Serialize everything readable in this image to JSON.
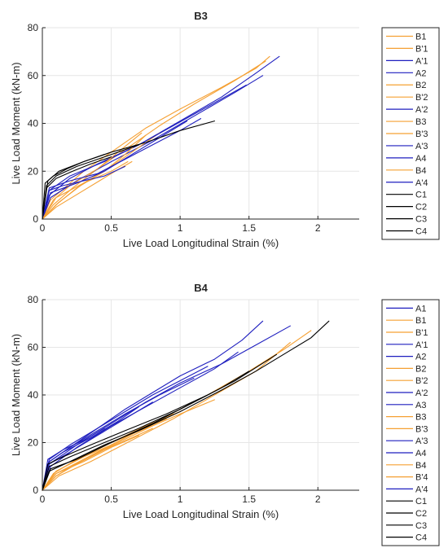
{
  "colors": {
    "A": "#1f1fbf",
    "B": "#f5a033",
    "C": "#000000"
  },
  "chart_data": [
    {
      "type": "line",
      "title": "B3",
      "xlabel": "Live Load Longitudinal Strain (%)",
      "ylabel": "Live Load Moment (kN-m)",
      "xlim": [
        0,
        2.3
      ],
      "ylim": [
        0,
        80
      ],
      "xticks": [
        0,
        0.5,
        1,
        1.5,
        2
      ],
      "xtick_labels": [
        "0",
        "0.5",
        "1",
        "1.5",
        "2"
      ],
      "yticks": [
        0,
        20,
        40,
        60,
        80
      ],
      "ytick_labels": [
        "0",
        "20",
        "40",
        "60",
        "80"
      ],
      "grid": true,
      "legend": "outside-right",
      "series": [
        {
          "name": "B1",
          "group": "B",
          "x": [
            0,
            0.06,
            0.18,
            0.3,
            0.5,
            0.75,
            1.0,
            1.3,
            1.55,
            1.65
          ],
          "y": [
            0,
            8,
            14,
            20,
            28,
            38,
            46,
            55,
            63,
            68
          ]
        },
        {
          "name": "B'1",
          "group": "B",
          "x": [
            0,
            0.08,
            0.22,
            0.4,
            0.6,
            0.85,
            1.1,
            1.4,
            1.62
          ],
          "y": [
            0,
            6,
            13,
            21,
            29,
            39,
            48,
            58,
            66
          ]
        },
        {
          "name": "A'1",
          "group": "A",
          "x": [
            0,
            0.05,
            0.2,
            0.4,
            0.7,
            1.0,
            1.3,
            1.55,
            1.72
          ],
          "y": [
            0,
            10,
            17,
            23,
            31,
            41,
            51,
            61,
            68
          ]
        },
        {
          "name": "A2",
          "group": "A",
          "x": [
            0,
            0.06,
            0.25,
            0.5,
            0.8,
            1.1,
            1.4,
            1.6
          ],
          "y": [
            0,
            9,
            16,
            24,
            33,
            43,
            53,
            60
          ]
        },
        {
          "name": "B2",
          "group": "B",
          "x": [
            0,
            0.1,
            0.3,
            0.5,
            0.65
          ],
          "y": [
            0,
            5,
            12,
            19,
            24
          ]
        },
        {
          "name": "B'2",
          "group": "B",
          "x": [
            0,
            0.12,
            0.3,
            0.5,
            0.7,
            0.85
          ],
          "y": [
            0,
            7,
            15,
            22,
            30,
            36
          ]
        },
        {
          "name": "A'2",
          "group": "A",
          "x": [
            0,
            0.05,
            0.2,
            0.45,
            0.7,
            0.95,
            1.2,
            1.48
          ],
          "y": [
            0,
            12,
            18,
            24,
            31,
            39,
            47,
            56
          ]
        },
        {
          "name": "B3",
          "group": "B",
          "x": [
            0,
            0.1,
            0.25,
            0.45,
            0.6,
            0.75
          ],
          "y": [
            0,
            6,
            13,
            20,
            27,
            35
          ]
        },
        {
          "name": "B'3",
          "group": "B",
          "x": [
            0,
            0.08,
            0.2,
            0.4,
            0.55,
            0.72
          ],
          "y": [
            0,
            8,
            14,
            21,
            28,
            36
          ]
        },
        {
          "name": "A'3",
          "group": "A",
          "x": [
            0,
            0.06,
            0.25,
            0.45,
            0.65,
            0.85,
            1.05
          ],
          "y": [
            0,
            11,
            15,
            20,
            27,
            34,
            41
          ]
        },
        {
          "name": "A4",
          "group": "A",
          "x": [
            0,
            0.05,
            0.2,
            0.4,
            0.6,
            0.8,
            1.0,
            1.15
          ],
          "y": [
            0,
            13,
            16,
            19,
            25,
            31,
            37,
            42
          ]
        },
        {
          "name": "B4",
          "group": "B",
          "x": [
            0,
            0.1,
            0.3,
            0.5,
            0.62
          ],
          "y": [
            0,
            9,
            15,
            20,
            24
          ]
        },
        {
          "name": "A'4",
          "group": "A",
          "x": [
            0,
            0.05,
            0.15,
            0.3,
            0.45,
            0.6
          ],
          "y": [
            0,
            12,
            14,
            16,
            18,
            22
          ]
        },
        {
          "name": "C1",
          "group": "C",
          "x": [
            0,
            0.03,
            0.1,
            0.25,
            0.4,
            0.55,
            0.7
          ],
          "y": [
            0,
            14,
            18,
            22,
            25,
            28,
            31
          ]
        },
        {
          "name": "C2",
          "group": "C",
          "x": [
            0,
            0.04,
            0.12,
            0.3,
            0.5,
            0.75,
            1.0,
            1.25
          ],
          "y": [
            0,
            16,
            20,
            24,
            28,
            32,
            37,
            41
          ]
        },
        {
          "name": "C3",
          "group": "C",
          "x": [
            0,
            0.03,
            0.1,
            0.22,
            0.35,
            0.5
          ],
          "y": [
            0,
            13,
            17,
            20,
            23,
            26
          ]
        },
        {
          "name": "C4",
          "group": "C",
          "x": [
            0,
            0.02,
            0.08,
            0.18,
            0.3,
            0.45
          ],
          "y": [
            0,
            15,
            18,
            21,
            24,
            27
          ]
        }
      ]
    },
    {
      "type": "line",
      "title": "B4",
      "xlabel": "Live Load Longitudinal Strain (%)",
      "ylabel": "Live Load Moment (kN-m)",
      "xlim": [
        0,
        2.3
      ],
      "ylim": [
        0,
        80
      ],
      "xticks": [
        0,
        0.5,
        1,
        1.5,
        2
      ],
      "xtick_labels": [
        "0",
        "0.5",
        "1",
        "1.5",
        "2"
      ],
      "yticks": [
        0,
        20,
        40,
        60,
        80
      ],
      "ytick_labels": [
        "0",
        "20",
        "40",
        "60",
        "80"
      ],
      "grid": true,
      "legend": "outside-right",
      "series": [
        {
          "name": "A1",
          "group": "A",
          "x": [
            0,
            0.05,
            0.2,
            0.4,
            0.6,
            0.8,
            1.0,
            1.25,
            1.45,
            1.6
          ],
          "y": [
            0,
            12,
            18,
            26,
            34,
            41,
            48,
            55,
            63,
            71
          ]
        },
        {
          "name": "B1",
          "group": "B",
          "x": [
            0,
            0.1,
            0.3,
            0.6,
            0.9,
            1.2,
            1.5,
            1.75,
            1.95
          ],
          "y": [
            0,
            7,
            13,
            22,
            31,
            40,
            50,
            59,
            67
          ]
        },
        {
          "name": "B'1",
          "group": "B",
          "x": [
            0,
            0.12,
            0.35,
            0.65,
            0.95,
            1.25,
            1.55,
            1.8
          ],
          "y": [
            0,
            6,
            12,
            21,
            30,
            40,
            50,
            62
          ]
        },
        {
          "name": "A'1",
          "group": "A",
          "x": [
            0,
            0.05,
            0.25,
            0.5,
            0.75,
            1.0,
            1.3,
            1.55,
            1.8
          ],
          "y": [
            0,
            11,
            19,
            28,
            37,
            45,
            53,
            61,
            69
          ]
        },
        {
          "name": "A2",
          "group": "A",
          "x": [
            0,
            0.06,
            0.25,
            0.5,
            0.75,
            1.0,
            1.25,
            1.42
          ],
          "y": [
            0,
            10,
            18,
            27,
            35,
            43,
            51,
            58
          ]
        },
        {
          "name": "B2",
          "group": "B",
          "x": [
            0,
            0.1,
            0.3,
            0.55,
            0.8,
            1.0,
            1.25
          ],
          "y": [
            0,
            6,
            13,
            20,
            27,
            32,
            38
          ]
        },
        {
          "name": "B'2",
          "group": "B",
          "x": [
            0,
            0.1,
            0.3,
            0.5,
            0.75,
            0.95
          ],
          "y": [
            0,
            8,
            14,
            20,
            26,
            32
          ]
        },
        {
          "name": "A'2",
          "group": "A",
          "x": [
            0,
            0.05,
            0.2,
            0.4,
            0.6,
            0.8,
            1.0,
            1.2
          ],
          "y": [
            0,
            13,
            19,
            26,
            33,
            40,
            46,
            52
          ]
        },
        {
          "name": "A3",
          "group": "A",
          "x": [
            0,
            0.05,
            0.2,
            0.4,
            0.6,
            0.85,
            1.1
          ],
          "y": [
            0,
            12,
            18,
            25,
            32,
            40,
            47
          ]
        },
        {
          "name": "B3",
          "group": "B",
          "x": [
            0,
            0.08,
            0.25,
            0.5,
            0.75,
            1.0
          ],
          "y": [
            0,
            7,
            13,
            20,
            27,
            33
          ]
        },
        {
          "name": "B'3",
          "group": "B",
          "x": [
            0,
            0.1,
            0.3,
            0.5,
            0.7,
            0.9
          ],
          "y": [
            0,
            8,
            14,
            19,
            25,
            30
          ]
        },
        {
          "name": "A'3",
          "group": "A",
          "x": [
            0,
            0.05,
            0.2,
            0.4,
            0.6,
            0.8
          ],
          "y": [
            0,
            11,
            16,
            23,
            30,
            37
          ]
        },
        {
          "name": "A4",
          "group": "A",
          "x": [
            0,
            0.05,
            0.15,
            0.35,
            0.55,
            0.7
          ],
          "y": [
            0,
            12,
            16,
            22,
            29,
            35
          ]
        },
        {
          "name": "B4",
          "group": "B",
          "x": [
            0,
            0.1,
            0.25,
            0.45,
            0.65,
            0.8
          ],
          "y": [
            0,
            6,
            11,
            17,
            22,
            26
          ]
        },
        {
          "name": "B'4",
          "group": "B",
          "x": [
            0,
            0.1,
            0.3,
            0.5,
            0.7
          ],
          "y": [
            0,
            7,
            12,
            18,
            23
          ]
        },
        {
          "name": "A'4",
          "group": "A",
          "x": [
            0,
            0.04,
            0.15,
            0.3,
            0.45
          ],
          "y": [
            0,
            13,
            17,
            21,
            26
          ]
        },
        {
          "name": "C1",
          "group": "C",
          "x": [
            0,
            0.05,
            0.2,
            0.45,
            0.7,
            1.0,
            1.3,
            1.55,
            1.75,
            1.95,
            2.08
          ],
          "y": [
            0,
            8,
            12,
            19,
            25,
            33,
            42,
            50,
            57,
            64,
            71
          ]
        },
        {
          "name": "C2",
          "group": "C",
          "x": [
            0,
            0.06,
            0.25,
            0.5,
            0.8,
            1.1,
            1.4,
            1.7
          ],
          "y": [
            0,
            9,
            13,
            20,
            28,
            37,
            46,
            57
          ]
        },
        {
          "name": "C3",
          "group": "C",
          "x": [
            0,
            0.05,
            0.2,
            0.45,
            0.7,
            1.0,
            1.3,
            1.5
          ],
          "y": [
            0,
            10,
            14,
            20,
            26,
            34,
            43,
            50
          ]
        },
        {
          "name": "C4",
          "group": "C",
          "x": [
            0,
            0.04,
            0.15,
            0.35,
            0.6,
            0.9,
            1.2
          ],
          "y": [
            0,
            11,
            14,
            19,
            25,
            32,
            40
          ]
        }
      ]
    }
  ]
}
